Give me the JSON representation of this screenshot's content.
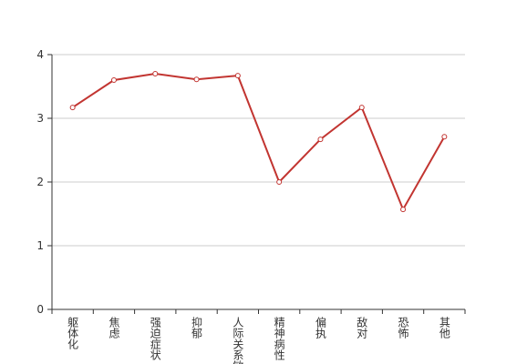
{
  "chart_data": {
    "type": "line",
    "categories": [
      "躯体化",
      "焦虑",
      "强迫症状",
      "抑郁",
      "人际关系敏感",
      "精神病性",
      "偏执",
      "敌对",
      "恐怖",
      "其他"
    ],
    "values": [
      3.17,
      3.6,
      3.7,
      3.61,
      3.67,
      2.0,
      2.67,
      3.17,
      1.57,
      2.71
    ],
    "color": "#c23531",
    "ylim": [
      0,
      4
    ],
    "yticks": [
      0,
      1,
      2,
      3,
      4
    ],
    "grid": true
  }
}
